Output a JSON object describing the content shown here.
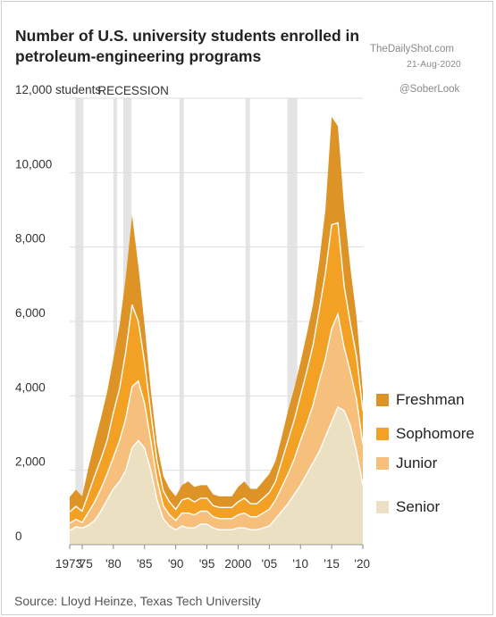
{
  "header": {
    "title": "Number of U.S. university students enrolled in petroleum-engineering programs",
    "brand": "TheDailyShot.com",
    "date": "21-Aug-2020",
    "handle": "@SoberLook"
  },
  "footer": {
    "source": "Source: Lloyd Heinze, Texas Tech University"
  },
  "chart_data": {
    "type": "area",
    "stacked": true,
    "title": "Number of U.S. university students enrolled in petroleum-engineering programs",
    "xlabel": "",
    "ylabel": "12,000 students",
    "ylim": [
      0,
      12000
    ],
    "xlim": [
      1973,
      2020
    ],
    "y_ticks": [
      {
        "value": 0,
        "label": "0"
      },
      {
        "value": 2000,
        "label": "2,000"
      },
      {
        "value": 4000,
        "label": "4,000"
      },
      {
        "value": 6000,
        "label": "6,000"
      },
      {
        "value": 8000,
        "label": "8,000"
      },
      {
        "value": 10000,
        "label": "10,000"
      },
      {
        "value": 12000,
        "label": "12,000 students"
      }
    ],
    "x_ticks": [
      {
        "value": 1973,
        "label": "1973"
      },
      {
        "value": 1975,
        "label": "'75"
      },
      {
        "value": 1980,
        "label": "'80"
      },
      {
        "value": 1985,
        "label": "'85"
      },
      {
        "value": 1990,
        "label": "'90"
      },
      {
        "value": 1995,
        "label": "'95"
      },
      {
        "value": 2000,
        "label": "2000"
      },
      {
        "value": 2005,
        "label": "'05"
      },
      {
        "value": 2010,
        "label": "'10"
      },
      {
        "value": 2015,
        "label": "'15"
      },
      {
        "value": 2020,
        "label": "'20"
      }
    ],
    "grid": true,
    "legend_position": "right",
    "recession_label": "RECESSION",
    "recessions": [
      [
        1973.9,
        1975.2
      ],
      [
        1980.0,
        1980.6
      ],
      [
        1981.6,
        1982.9
      ],
      [
        1990.6,
        1991.3
      ],
      [
        2001.2,
        2001.9
      ],
      [
        2007.9,
        2009.5
      ]
    ],
    "x": [
      1973,
      1974,
      1975,
      1976,
      1977,
      1978,
      1979,
      1980,
      1981,
      1982,
      1983,
      1984,
      1985,
      1986,
      1987,
      1988,
      1989,
      1990,
      1991,
      1992,
      1993,
      1994,
      1995,
      1996,
      1997,
      1998,
      1999,
      2000,
      2001,
      2002,
      2003,
      2004,
      2005,
      2006,
      2007,
      2008,
      2009,
      2010,
      2011,
      2012,
      2013,
      2014,
      2015,
      2016,
      2017,
      2018,
      2019,
      2020
    ],
    "series": [
      {
        "name": "Senior",
        "values": [
          380,
          480,
          450,
          520,
          650,
          900,
          1200,
          1500,
          1700,
          2000,
          2600,
          2800,
          2600,
          2000,
          1200,
          700,
          500,
          400,
          500,
          450,
          450,
          550,
          550,
          450,
          400,
          400,
          400,
          450,
          450,
          400,
          400,
          450,
          500,
          700,
          900,
          1100,
          1350,
          1600,
          1900,
          2200,
          2500,
          2900,
          3300,
          3700,
          3600,
          3200,
          2500,
          1600
        ]
      },
      {
        "name": "Junior",
        "values": [
          200,
          200,
          150,
          350,
          500,
          600,
          700,
          850,
          1100,
          1400,
          1650,
          1600,
          1200,
          800,
          550,
          350,
          300,
          250,
          350,
          400,
          350,
          350,
          350,
          300,
          300,
          300,
          300,
          350,
          400,
          350,
          350,
          400,
          450,
          500,
          650,
          800,
          950,
          1200,
          1350,
          1550,
          1900,
          2100,
          2500,
          2500,
          1700,
          1450,
          1400,
          1100
        ]
      },
      {
        "name": "Sophomore",
        "values": [
          300,
          350,
          300,
          500,
          700,
          800,
          900,
          1200,
          1400,
          1800,
          2200,
          1600,
          1100,
          750,
          500,
          400,
          350,
          300,
          350,
          400,
          350,
          350,
          350,
          300,
          300,
          300,
          300,
          350,
          400,
          350,
          350,
          400,
          450,
          500,
          700,
          900,
          1050,
          1200,
          1400,
          1600,
          1900,
          2300,
          2800,
          2450,
          1650,
          1300,
          1150,
          900
        ]
      },
      {
        "name": "Freshman",
        "values": [
          400,
          450,
          400,
          700,
          900,
          1100,
          1300,
          1450,
          1700,
          2000,
          2400,
          1500,
          1000,
          600,
          450,
          400,
          350,
          350,
          400,
          450,
          400,
          350,
          350,
          300,
          300,
          300,
          300,
          400,
          450,
          400,
          400,
          450,
          500,
          550,
          650,
          800,
          850,
          900,
          1000,
          1100,
          1300,
          1700,
          2900,
          2600,
          2100,
          1500,
          1050,
          500
        ]
      }
    ],
    "colors": {
      "Senior": "#ece0c3",
      "Junior": "#f6c07c",
      "Sophomore": "#f2a124",
      "Freshman": "#dd9325",
      "recession": "#e4e4e4",
      "grid": "#dddddd",
      "divider": "#ffffff"
    }
  }
}
